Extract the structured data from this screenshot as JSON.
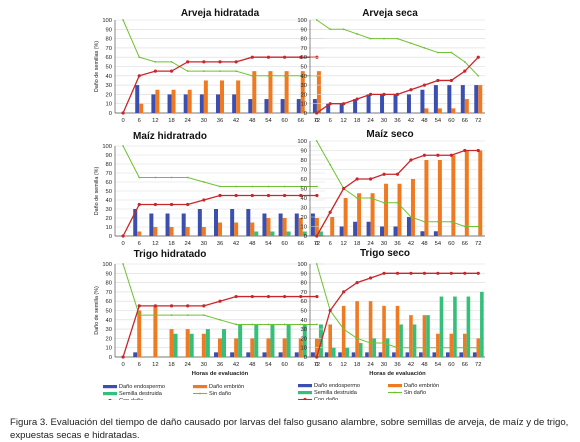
{
  "colors": {
    "endosperm": "#3b4fb0",
    "embryo": "#f07a22",
    "destroyed": "#36bf7b",
    "undamaged": "#6ec231",
    "damaged": "#c9262b",
    "grid": "#d9d9d9",
    "axis": "#555555"
  },
  "caption": "Figura 3. Evaluación del tiempo de daño causado por larvas del falso gusano alambre, sobre semillas de arveja, de maíz y de trigo, expuestas secas e hidratadas.",
  "legend_left": {
    "endosperm": "Daño endospermo",
    "embryo": "Daño embrión",
    "destroyed": "Semilla destruida",
    "undamaged": "Sin daño",
    "damaged": "Con daño"
  },
  "legend_right": {
    "endosperm": "Daño endospermo",
    "embryo": "Daño embrión",
    "destroyed": "Semilla destruida",
    "undamaged": "Sin daño",
    "damaged": "Con daño"
  },
  "chart_data": [
    {
      "type": "bar",
      "title": "Arveja hidratada",
      "ylabel": "Daño de semillas (%)",
      "xlabel": "",
      "categories": [
        "0",
        "6",
        "12",
        "18",
        "24",
        "30",
        "36",
        "42",
        "48",
        "54",
        "60",
        "66",
        "72"
      ],
      "yticks": [
        "0",
        "10",
        "20",
        "30",
        "40",
        "50",
        "60",
        "70",
        "80",
        "90",
        "100"
      ],
      "ylim": [
        0,
        100
      ],
      "series": [
        {
          "key": "endosperm",
          "kind": "bar",
          "values": [
            0,
            30,
            20,
            20,
            20,
            20,
            20,
            20,
            15,
            15,
            15,
            15,
            15
          ]
        },
        {
          "key": "embryo",
          "kind": "bar",
          "values": [
            0,
            10,
            25,
            25,
            25,
            35,
            35,
            35,
            45,
            45,
            45,
            45,
            45
          ]
        },
        {
          "key": "undamaged",
          "kind": "line",
          "values": [
            100,
            60,
            55,
            55,
            45,
            45,
            45,
            45,
            40,
            40,
            40,
            40,
            40
          ]
        },
        {
          "key": "damaged",
          "kind": "line",
          "values": [
            0,
            40,
            45,
            45,
            55,
            55,
            55,
            55,
            60,
            60,
            60,
            60,
            60
          ]
        }
      ]
    },
    {
      "type": "bar",
      "title": "Arveja seca",
      "ylabel": "",
      "xlabel": "",
      "categories": [
        "0",
        "6",
        "12",
        "18",
        "24",
        "30",
        "36",
        "42",
        "48",
        "54",
        "60",
        "66",
        "72"
      ],
      "yticks": [
        "0",
        "10",
        "20",
        "30",
        "40",
        "50",
        "60",
        "70",
        "80",
        "90",
        "100"
      ],
      "ylim": [
        0,
        100
      ],
      "series": [
        {
          "key": "endosperm",
          "kind": "bar",
          "values": [
            0,
            10,
            10,
            15,
            20,
            20,
            20,
            20,
            25,
            30,
            30,
            30,
            30
          ]
        },
        {
          "key": "embryo",
          "kind": "bar",
          "values": [
            0,
            0,
            0,
            0,
            0,
            0,
            0,
            0,
            5,
            5,
            5,
            15,
            30
          ]
        },
        {
          "key": "undamaged",
          "kind": "line",
          "values": [
            100,
            90,
            90,
            85,
            80,
            80,
            80,
            75,
            70,
            65,
            65,
            55,
            40
          ]
        },
        {
          "key": "damaged",
          "kind": "line",
          "values": [
            0,
            10,
            10,
            15,
            20,
            20,
            20,
            25,
            30,
            35,
            35,
            45,
            60
          ]
        }
      ]
    },
    {
      "type": "bar",
      "title": "Maíz hidratrado",
      "ylabel": "Daño de semilla (%)",
      "xlabel": "",
      "categories": [
        "0",
        "6",
        "12",
        "18",
        "24",
        "30",
        "36",
        "42",
        "48",
        "54",
        "60",
        "66",
        "72"
      ],
      "yticks": [
        "0",
        "10",
        "20",
        "30",
        "40",
        "50",
        "60",
        "70",
        "80",
        "90",
        "100"
      ],
      "ylim": [
        0,
        100
      ],
      "series": [
        {
          "key": "endosperm",
          "kind": "bar",
          "values": [
            0,
            30,
            25,
            25,
            25,
            30,
            30,
            30,
            30,
            25,
            25,
            25,
            25
          ]
        },
        {
          "key": "embryo",
          "kind": "bar",
          "values": [
            0,
            5,
            10,
            10,
            10,
            10,
            15,
            15,
            15,
            20,
            20,
            20,
            20
          ]
        },
        {
          "key": "destroyed",
          "kind": "bar",
          "values": [
            0,
            0,
            0,
            0,
            0,
            0,
            0,
            0,
            5,
            5,
            5,
            5,
            5
          ]
        },
        {
          "key": "undamaged",
          "kind": "line",
          "values": [
            100,
            65,
            65,
            65,
            65,
            60,
            55,
            55,
            55,
            55,
            55,
            55,
            55
          ]
        },
        {
          "key": "damaged",
          "kind": "line",
          "values": [
            0,
            35,
            35,
            35,
            35,
            40,
            45,
            45,
            45,
            45,
            45,
            45,
            45
          ]
        }
      ]
    },
    {
      "type": "bar",
      "title": "Maíz seco",
      "ylabel": "",
      "xlabel": "",
      "categories": [
        "0",
        "6",
        "12",
        "18",
        "24",
        "30",
        "36",
        "42",
        "48",
        "54",
        "60",
        "66",
        "72"
      ],
      "yticks": [
        "0",
        "10",
        "20",
        "30",
        "40",
        "50",
        "60",
        "70",
        "80",
        "90",
        "100"
      ],
      "ylim": [
        0,
        100
      ],
      "series": [
        {
          "key": "endosperm",
          "kind": "bar",
          "values": [
            0,
            0,
            10,
            15,
            15,
            10,
            10,
            20,
            5,
            5,
            0,
            0,
            0
          ]
        },
        {
          "key": "embryo",
          "kind": "bar",
          "values": [
            0,
            20,
            40,
            45,
            45,
            55,
            55,
            60,
            80,
            80,
            85,
            90,
            90
          ]
        },
        {
          "key": "undamaged",
          "kind": "line",
          "values": [
            100,
            75,
            50,
            40,
            40,
            35,
            35,
            20,
            15,
            15,
            15,
            10,
            10
          ]
        },
        {
          "key": "damaged",
          "kind": "line",
          "values": [
            0,
            25,
            50,
            60,
            60,
            65,
            65,
            80,
            85,
            85,
            85,
            90,
            90
          ]
        }
      ]
    },
    {
      "type": "bar",
      "title": "Trigo hidratado",
      "ylabel": "Daño de semilla (%)",
      "xlabel": "Horas de evaluación",
      "categories": [
        "0",
        "6",
        "12",
        "18",
        "24",
        "30",
        "36",
        "42",
        "48",
        "54",
        "60",
        "66",
        "72"
      ],
      "yticks": [
        "0",
        "10",
        "20",
        "30",
        "40",
        "50",
        "60",
        "70",
        "80",
        "90",
        "100"
      ],
      "ylim": [
        0,
        100
      ],
      "series": [
        {
          "key": "endosperm",
          "kind": "bar",
          "values": [
            0,
            5,
            0,
            0,
            0,
            0,
            5,
            5,
            5,
            5,
            5,
            5,
            5
          ]
        },
        {
          "key": "embryo",
          "kind": "bar",
          "values": [
            0,
            50,
            55,
            30,
            30,
            25,
            20,
            20,
            20,
            20,
            20,
            20,
            20
          ]
        },
        {
          "key": "destroyed",
          "kind": "bar",
          "values": [
            0,
            0,
            0,
            25,
            25,
            30,
            30,
            35,
            35,
            35,
            35,
            35,
            35
          ]
        },
        {
          "key": "undamaged",
          "kind": "line",
          "values": [
            100,
            45,
            45,
            45,
            45,
            45,
            40,
            35,
            35,
            35,
            35,
            35,
            35
          ]
        },
        {
          "key": "damaged",
          "kind": "line",
          "values": [
            0,
            55,
            55,
            55,
            55,
            55,
            60,
            65,
            65,
            65,
            65,
            65,
            65
          ]
        }
      ]
    },
    {
      "type": "bar",
      "title": "Trigo seco",
      "ylabel": "",
      "xlabel": "Horas de evaluación",
      "categories": [
        "0",
        "6",
        "12",
        "18",
        "24",
        "30",
        "36",
        "42",
        "48",
        "54",
        "60",
        "66",
        "72"
      ],
      "yticks": [
        "0",
        "10",
        "20",
        "30",
        "40",
        "50",
        "60",
        "70",
        "80",
        "90",
        "100"
      ],
      "ylim": [
        0,
        100
      ],
      "series": [
        {
          "key": "endosperm",
          "kind": "bar",
          "values": [
            0,
            5,
            5,
            5,
            5,
            5,
            5,
            5,
            5,
            5,
            5,
            5,
            5
          ]
        },
        {
          "key": "embryo",
          "kind": "bar",
          "values": [
            0,
            35,
            55,
            60,
            60,
            55,
            55,
            45,
            45,
            25,
            25,
            25,
            20
          ]
        },
        {
          "key": "destroyed",
          "kind": "bar",
          "values": [
            0,
            10,
            10,
            15,
            20,
            20,
            35,
            35,
            45,
            65,
            65,
            65,
            70
          ]
        },
        {
          "key": "undamaged",
          "kind": "line",
          "values": [
            100,
            50,
            30,
            20,
            15,
            15,
            10,
            10,
            10,
            10,
            10,
            10,
            10
          ]
        },
        {
          "key": "damaged",
          "kind": "line",
          "values": [
            0,
            50,
            70,
            80,
            85,
            90,
            90,
            90,
            90,
            90,
            90,
            90,
            90
          ]
        }
      ]
    }
  ]
}
